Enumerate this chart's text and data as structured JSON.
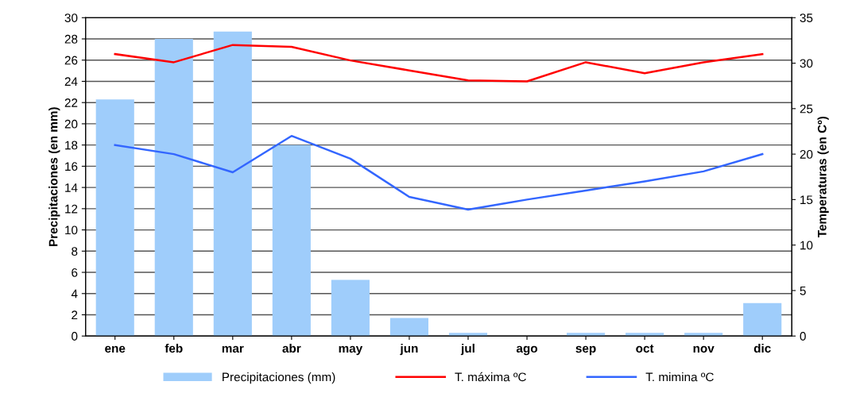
{
  "chart_data": {
    "type": "bar",
    "ylabel": "Precipitaciones (en mm)",
    "y2label": "Temperaturas (en Cº)",
    "categories": [
      "ene",
      "feb",
      "mar",
      "abr",
      "may",
      "jun",
      "jul",
      "ago",
      "sep",
      "oct",
      "nov",
      "dic"
    ],
    "series": [
      {
        "name": "Precipitaciones (mm)",
        "color": "#9fcdfb",
        "values": [
          22.3,
          28,
          28.7,
          18,
          5.3,
          1.7,
          0.3,
          0,
          0.3,
          0.3,
          0.3,
          3.1
        ]
      },
      {
        "name": "T. máxima ºC",
        "type": "line",
        "axis": "y2",
        "color": "#ff0000",
        "values": [
          31.0,
          30.1,
          32.0,
          31.8,
          30.3,
          29.2,
          28.1,
          28.0,
          30.1,
          28.9,
          30.1,
          31.0
        ]
      },
      {
        "name": "T. mimina ºC",
        "type": "line",
        "axis": "y2",
        "color": "#3366ff",
        "values": [
          21.0,
          20.0,
          18.0,
          22.0,
          19.5,
          15.3,
          13.9,
          15.0,
          16.0,
          17.0,
          18.1,
          20.0
        ]
      }
    ],
    "ylim": [
      0,
      30
    ],
    "yticks": [
      0,
      2,
      4,
      6,
      8,
      10,
      12,
      14,
      16,
      18,
      20,
      22,
      24,
      26,
      28,
      30
    ],
    "y2lim": [
      0,
      35
    ],
    "y2ticks": [
      0,
      5,
      10,
      15,
      20,
      25,
      30,
      35
    ],
    "grid": "y",
    "legend": "bottom",
    "marker": "none",
    "line_style": "solid"
  }
}
